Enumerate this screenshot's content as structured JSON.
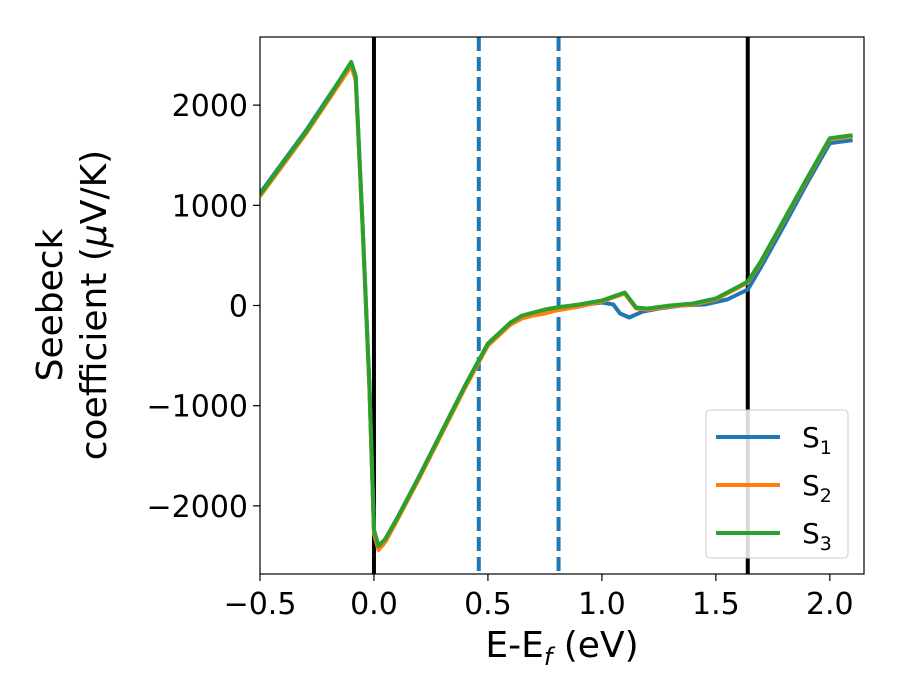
{
  "chart_data": {
    "type": "line",
    "xlabel": "E-E",
    "xlabel_sub": "f",
    "xlabel_unit": " (eV)",
    "ylabel_line1": "Seebeck",
    "ylabel_line2": "coefficient  (",
    "ylabel_mu": "μ",
    "ylabel_unit": "V/K)",
    "xlim": [
      -0.5,
      2.15
    ],
    "ylim": [
      -2680,
      2680
    ],
    "xticks": [
      -0.5,
      0.0,
      0.5,
      1.0,
      1.5,
      2.0
    ],
    "xtick_labels": [
      "−0.5",
      "0.0",
      "0.5",
      "1.0",
      "1.5",
      "2.0"
    ],
    "yticks": [
      -2000,
      -1000,
      0,
      1000,
      2000
    ],
    "ytick_labels": [
      "−2000",
      "−1000",
      "0",
      "1000",
      "2000"
    ],
    "grid": false,
    "legend_position": "lower right",
    "vlines_solid": [
      0.0,
      1.64
    ],
    "vlines_dashed": [
      0.46,
      0.81
    ],
    "series": [
      {
        "name": "S",
        "subscript": "1",
        "color": "#1f77b4",
        "x": [
          -0.5,
          -0.3,
          -0.2,
          -0.1,
          -0.08,
          -0.05,
          -0.02,
          0.0,
          0.02,
          0.05,
          0.1,
          0.2,
          0.3,
          0.4,
          0.5,
          0.6,
          0.65,
          0.7,
          0.75,
          0.8,
          0.9,
          1.0,
          1.05,
          1.08,
          1.12,
          1.18,
          1.25,
          1.35,
          1.45,
          1.55,
          1.64,
          1.7,
          1.8,
          1.9,
          2.0,
          2.1
        ],
        "y": [
          1120,
          1740,
          2080,
          2420,
          2280,
          800,
          -800,
          -2250,
          -2420,
          -2330,
          -2130,
          -1700,
          -1250,
          -800,
          -380,
          -170,
          -110,
          -80,
          -50,
          -30,
          0,
          30,
          10,
          -80,
          -120,
          -60,
          -30,
          0,
          10,
          60,
          160,
          390,
          800,
          1220,
          1620,
          1650
        ]
      },
      {
        "name": "S",
        "subscript": "2",
        "color": "#ff7f0e",
        "x": [
          -0.5,
          -0.3,
          -0.2,
          -0.1,
          -0.08,
          -0.05,
          -0.02,
          0.0,
          0.02,
          0.05,
          0.1,
          0.2,
          0.3,
          0.4,
          0.5,
          0.6,
          0.65,
          0.7,
          0.75,
          0.8,
          0.9,
          1.0,
          1.05,
          1.1,
          1.15,
          1.2,
          1.3,
          1.4,
          1.5,
          1.6,
          1.64,
          1.7,
          1.8,
          1.9,
          2.0,
          2.1
        ],
        "y": [
          1090,
          1710,
          2050,
          2390,
          2250,
          780,
          -820,
          -2280,
          -2440,
          -2360,
          -2150,
          -1720,
          -1270,
          -820,
          -400,
          -190,
          -130,
          -100,
          -80,
          -50,
          -10,
          40,
          80,
          120,
          -30,
          -40,
          -10,
          10,
          60,
          180,
          230,
          440,
          850,
          1260,
          1660,
          1690
        ]
      },
      {
        "name": "S",
        "subscript": "3",
        "color": "#2ca02c",
        "x": [
          -0.5,
          -0.3,
          -0.2,
          -0.1,
          -0.08,
          -0.05,
          -0.02,
          0.0,
          0.02,
          0.05,
          0.1,
          0.2,
          0.3,
          0.4,
          0.5,
          0.6,
          0.65,
          0.7,
          0.75,
          0.8,
          0.9,
          1.0,
          1.05,
          1.1,
          1.15,
          1.2,
          1.3,
          1.4,
          1.5,
          1.6,
          1.64,
          1.7,
          1.8,
          1.9,
          2.0,
          2.1
        ],
        "y": [
          1110,
          1730,
          2070,
          2430,
          2290,
          800,
          -800,
          -2240,
          -2400,
          -2330,
          -2130,
          -1700,
          -1250,
          -800,
          -380,
          -170,
          -100,
          -70,
          -40,
          -20,
          10,
          50,
          90,
          130,
          -20,
          -30,
          0,
          20,
          70,
          190,
          240,
          450,
          860,
          1270,
          1670,
          1700
        ]
      }
    ]
  }
}
